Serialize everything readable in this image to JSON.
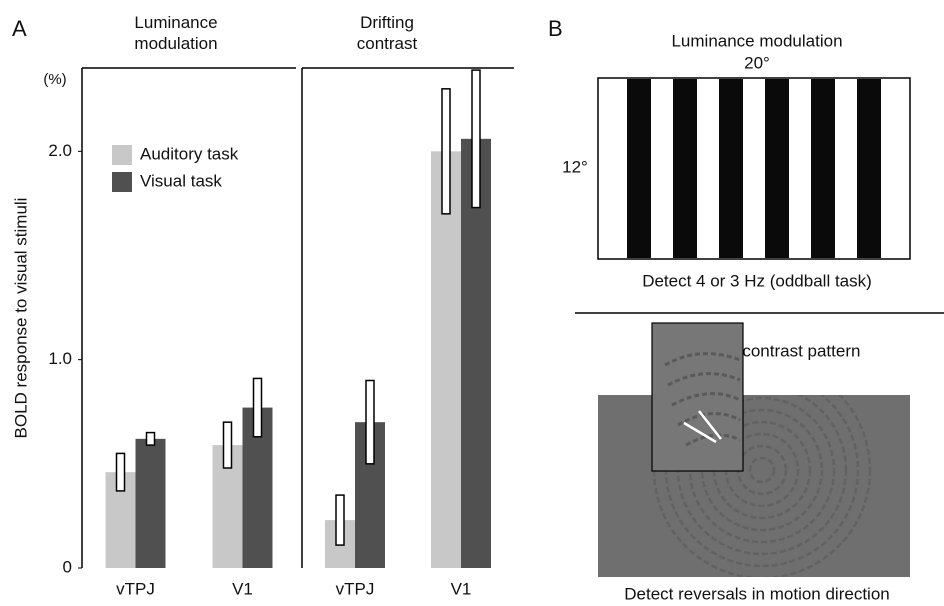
{
  "panel_labels": [
    "A",
    "B"
  ],
  "chart_data": [
    {
      "type": "bar",
      "title": "Luminance modulation",
      "y_label": "BOLD response to visual stimuli",
      "y_unit": "(%)",
      "categories": [
        "vTPJ",
        "V1"
      ],
      "series": [
        {
          "name": "Auditory task",
          "color": "#c8c8c8",
          "values": [
            0.46,
            0.59
          ],
          "errors": [
            0.09,
            0.11
          ]
        },
        {
          "name": "Visual task",
          "color": "#505050",
          "values": [
            0.62,
            0.77
          ],
          "errors": [
            0.03,
            0.14
          ]
        }
      ],
      "ylim": [
        0,
        2.4
      ],
      "yticks": [
        0,
        {
          "value": 1,
          "label": "1.0"
        },
        {
          "value": 2,
          "label": "2.0"
        }
      ]
    },
    {
      "type": "bar",
      "title": "Drifting contrast",
      "categories": [
        "vTPJ",
        "V1"
      ],
      "series": [
        {
          "color": "#c8c8c8",
          "values": [
            0.23,
            2.0
          ],
          "errors": [
            0.12,
            0.3
          ]
        },
        {
          "color": "#505050",
          "values": [
            0.7,
            2.06
          ],
          "errors": [
            0.2,
            0.33
          ]
        }
      ],
      "ylim": [
        0,
        2.4
      ]
    }
  ],
  "panel_b": {
    "grating_title": "Luminance modulation",
    "width_label": "20°",
    "height_label": "12°",
    "grating_task": "Detect 4 or 3 Hz (oddball task)",
    "pattern_title": "Drifting low contrast pattern",
    "pattern_task": "Detect reversals in motion direction"
  }
}
